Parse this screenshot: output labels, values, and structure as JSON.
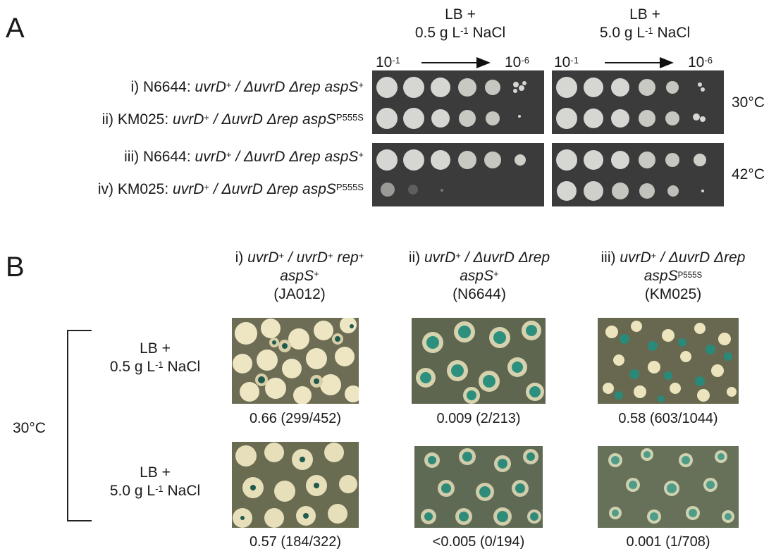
{
  "panel_a": {
    "letter": "A",
    "medium_low": {
      "line1": "LB +",
      "line2_pre": "0.5 g L",
      "line2_sup": "-1",
      "line2_post": " NaCl"
    },
    "medium_high": {
      "line1": "LB +",
      "line2_pre": "5.0 g L",
      "line2_sup": "-1",
      "line2_post": " NaCl"
    },
    "dilution_start": {
      "base": "10",
      "exp": "-1"
    },
    "dilution_end": {
      "base": "10",
      "exp": "-6"
    },
    "rows": [
      {
        "prefix": "i) N6644: ",
        "g1": "uvrD",
        "s1": "+",
        "sep": " / ",
        "g2": "ΔuvrD Δrep aspS",
        "s2": "+"
      },
      {
        "prefix": "ii) KM025: ",
        "g1": "uvrD",
        "s1": "+",
        "sep": " / ",
        "g2": "ΔuvrD Δrep aspS",
        "s2": "P555S"
      },
      {
        "prefix": "iii) N6644: ",
        "g1": "uvrD",
        "s1": "+",
        "sep": " / ",
        "g2": "ΔuvrD Δrep aspS",
        "s2": "+"
      },
      {
        "prefix": "iv) KM025: ",
        "g1": "uvrD",
        "s1": "+",
        "sep": " / ",
        "g2": "ΔuvrD Δrep aspS",
        "s2": "P555S"
      }
    ],
    "temp_top": "30°C",
    "temp_bottom": "42°C"
  },
  "panel_b": {
    "letter": "B",
    "temperature": "30°C",
    "columns": [
      {
        "line1": "i) uvrD+ / uvrD+ rep+",
        "line2": "aspS+",
        "line3": "(JA012)"
      },
      {
        "line1": "ii) uvrD+ / ΔuvrD Δrep",
        "line2": "aspS+",
        "line3": "(N6644)"
      },
      {
        "line1": "iii) uvrD+ / ΔuvrD Δrep",
        "line2": "aspS P555S",
        "line3": "(KM025)"
      }
    ],
    "rows": [
      {
        "line1": "LB +",
        "line2_pre": "0.5 g L",
        "line2_sup": "-1",
        "line2_post": " NaCl"
      },
      {
        "line1": "LB +",
        "line2_pre": "5.0 g L",
        "line2_sup": "-1",
        "line2_post": " NaCl"
      }
    ],
    "ratios": [
      [
        "0.66 (299/452)",
        "0.009 (2/213)",
        "0.58 (603/1044)"
      ],
      [
        "0.57 (184/322)",
        "<0.005 (0/194)",
        "0.001 (1/708)"
      ]
    ]
  },
  "colors": {
    "plate_bg": "#3b3b3b",
    "colony": "#d9d9d6",
    "dish_bg": "#6e6e54",
    "white_colony": "#efe8c4",
    "blue_colony": "#2a8a7a"
  }
}
